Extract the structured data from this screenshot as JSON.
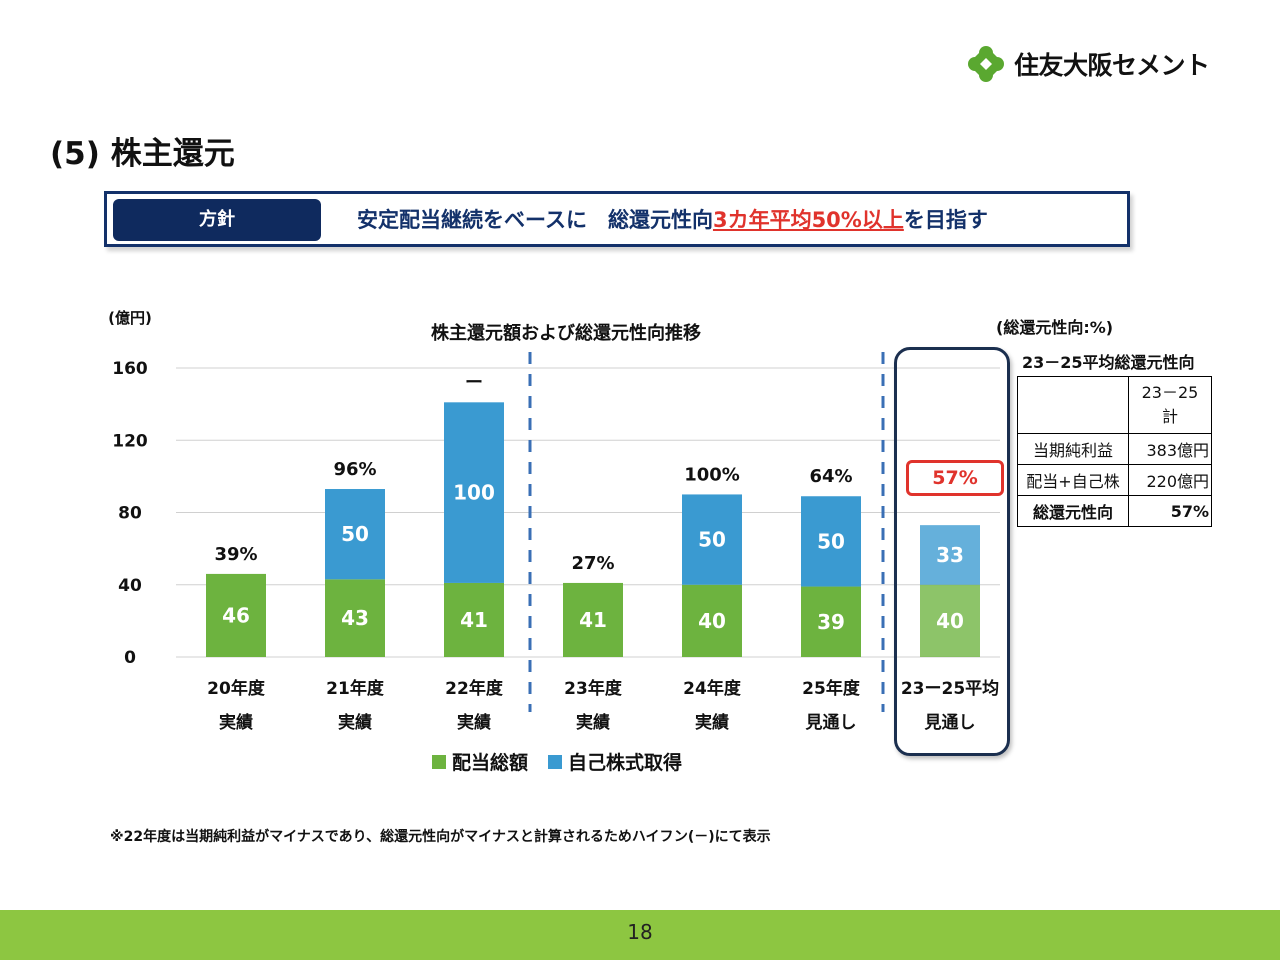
{
  "header": {
    "logo_text": "住友大阪セメント",
    "page_title": "(5) 株主還元"
  },
  "policy": {
    "tag": "方針",
    "text_pre": "安定配当継続をベースに　総還元性向",
    "text_accent": "3カ年平均50%以上",
    "text_post": "を目指す"
  },
  "chart_data": {
    "type": "bar",
    "stacked": true,
    "title": "株主還元額および総還元性向推移",
    "ylabel": "(億円)",
    "ylim": [
      0,
      160
    ],
    "yticks": [
      0,
      40,
      80,
      120,
      160
    ],
    "categories": [
      [
        "20年度",
        "実績"
      ],
      [
        "21年度",
        "実績"
      ],
      [
        "22年度",
        "実績"
      ],
      [
        "23年度",
        "実績"
      ],
      [
        "24年度",
        "実績"
      ],
      [
        "25年度",
        "見通し"
      ],
      [
        "23ー25平均",
        "見通し"
      ]
    ],
    "series": [
      {
        "name": "配当総額",
        "color": "#6db33f",
        "values": [
          46,
          43,
          41,
          41,
          40,
          39,
          40
        ]
      },
      {
        "name": "自己株式取得",
        "color": "#3a9ad1",
        "values": [
          0,
          50,
          100,
          0,
          50,
          50,
          33
        ]
      }
    ],
    "ratio_labels": [
      "39%",
      "96%",
      "ー",
      "27%",
      "100%",
      "64%",
      "57%"
    ],
    "legend_position": "bottom"
  },
  "ratio_table": {
    "unit": "(総還元性向:%)",
    "title": "23－25平均総還元性向",
    "header_col2": [
      "23－25",
      "計"
    ],
    "rows": [
      {
        "label": "当期純利益",
        "value": "383億円"
      },
      {
        "label": "配当+自己株",
        "value": "220億円"
      },
      {
        "label": "総還元性向",
        "value": "57%"
      }
    ]
  },
  "footnote": "※22年度は当期純利益がマイナスであり、総還元性向がマイナスと計算されるためハイフン(－)にて表示",
  "page_number": "18"
}
